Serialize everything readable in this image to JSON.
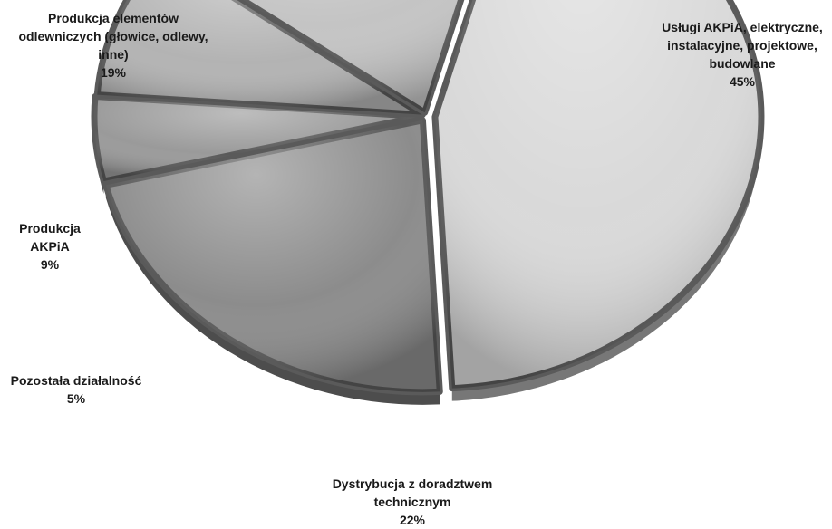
{
  "chart_data": {
    "type": "pie",
    "title": "",
    "slices": [
      {
        "label": "Usługi AKPiA, elektryczne,\ninstalacyjne, projektowe,\nbudowlane",
        "percent_label": "45%",
        "value": 45,
        "color": "#d9d9d9"
      },
      {
        "label": "Dystrybucja z doradztwem\ntechnicznym",
        "percent_label": "22%",
        "value": 22,
        "color": "#8c8c8c"
      },
      {
        "label": "Pozostała działalność",
        "percent_label": "5%",
        "value": 5,
        "color": "#9a9a9a"
      },
      {
        "label": "Produkcja\nAKPiA",
        "percent_label": "9%",
        "value": 9,
        "color": "#b3b3b3"
      },
      {
        "label": "Produkcja elementów\nodlewniczych (głowice, odlewy,\ninne)",
        "percent_label": "19%",
        "value": 19,
        "color": "#c4c4c4"
      }
    ],
    "legend": "none",
    "style": "3d-exploded-grayscale"
  }
}
